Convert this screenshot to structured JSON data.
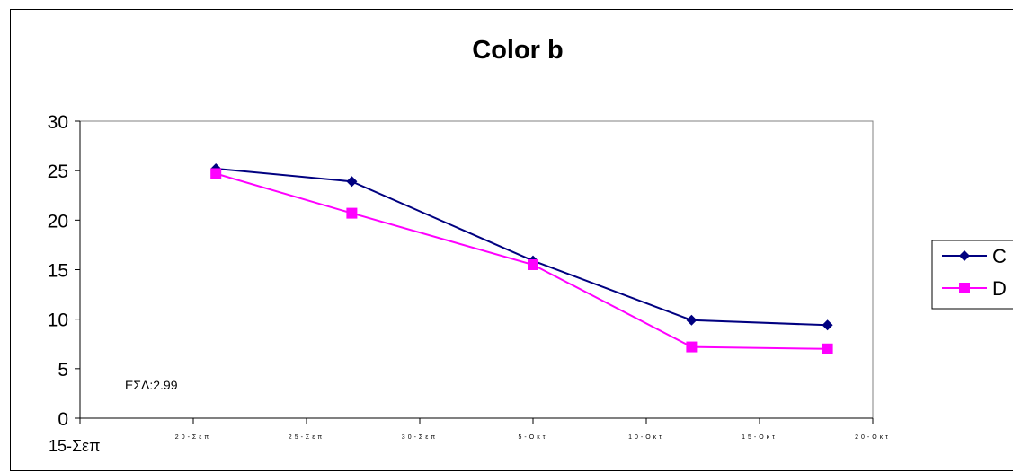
{
  "chart_data": {
    "type": "line",
    "title": "Color b",
    "xlabel": "",
    "ylabel": "",
    "ylim": [
      0,
      30
    ],
    "yticks": [
      "0",
      "5",
      "10",
      "15",
      "20",
      "25",
      "30"
    ],
    "x_tick_labels": [
      "15-Σεπ",
      "20-Σεπ",
      "25-Σεπ",
      "30-Σεπ",
      "5-Οκτ",
      "10-Οκτ",
      "15-Οκτ",
      "20-Οκτ"
    ],
    "x": [
      "2021-09-21",
      "2021-09-27",
      "2021-10-05",
      "2021-10-12",
      "2021-10-18"
    ],
    "series": [
      {
        "name": "C",
        "color": "#000080",
        "marker": "diamond",
        "values": [
          25.2,
          23.9,
          15.9,
          9.9,
          9.4
        ]
      },
      {
        "name": "D",
        "color": "#ff00ff",
        "marker": "square",
        "values": [
          24.7,
          20.7,
          15.5,
          7.2,
          7.0
        ]
      }
    ],
    "annotation": "ΕΣΔ:2.99",
    "legend": "right",
    "grid": false
  }
}
